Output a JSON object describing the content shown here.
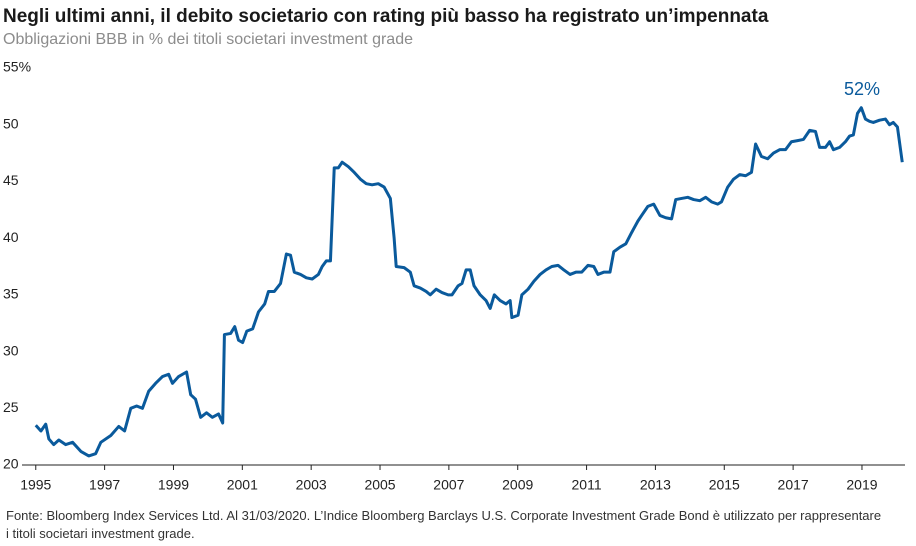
{
  "chart_data": {
    "type": "line",
    "title": "Negli ultimi anni, il debito societario con rating più basso ha registrato un’impennata",
    "subtitle": "Obbligazioni BBB in % dei titoli societari investment grade",
    "annotation": "52%",
    "source": "Fonte: Bloomberg Index Services Ltd. Al 31/03/2020. L’Indice Bloomberg Barclays U.S. Corporate Investment Grade Bond è utilizzato per rappresentare i titoli societari investment grade.",
    "color": "#0a5a9c",
    "xlim": [
      1994.6,
      2020.25
    ],
    "ylim": [
      20,
      55
    ],
    "xticks": [
      1995,
      1997,
      1999,
      2001,
      2003,
      2005,
      2007,
      2009,
      2011,
      2013,
      2015,
      2017,
      2019
    ],
    "yticks": [
      20,
      25,
      30,
      35,
      40,
      45,
      50,
      {
        "value": 55,
        "label": "55%"
      }
    ],
    "x": [
      1995.0,
      1995.15,
      1995.29,
      1995.38,
      1995.52,
      1995.67,
      1995.87,
      1996.07,
      1996.31,
      1996.54,
      1996.74,
      1996.89,
      1997.18,
      1997.41,
      1997.58,
      1997.76,
      1997.93,
      1998.1,
      1998.28,
      1998.48,
      1998.68,
      1998.86,
      1998.97,
      1999.15,
      1999.38,
      1999.5,
      1999.64,
      1999.79,
      1999.96,
      2000.13,
      2000.31,
      2000.43,
      2000.48,
      2000.66,
      2000.78,
      2000.89,
      2001.01,
      2001.13,
      2001.3,
      2001.47,
      2001.65,
      2001.76,
      2001.93,
      2002.11,
      2002.28,
      2002.4,
      2002.51,
      2002.69,
      2002.86,
      2003.03,
      2003.21,
      2003.32,
      2003.44,
      2003.56,
      2003.67,
      2003.79,
      2003.9,
      2004.08,
      2004.25,
      2004.43,
      2004.6,
      2004.77,
      2004.95,
      2005.12,
      2005.3,
      2005.41,
      2005.47,
      2005.7,
      2005.88,
      2005.99,
      2006.17,
      2006.34,
      2006.46,
      2006.63,
      2006.8,
      2006.98,
      2007.09,
      2007.27,
      2007.38,
      2007.5,
      2007.62,
      2007.73,
      2007.91,
      2008.08,
      2008.2,
      2008.32,
      2008.49,
      2008.66,
      2008.78,
      2008.83,
      2009.01,
      2009.12,
      2009.3,
      2009.47,
      2009.65,
      2009.82,
      2009.99,
      2010.17,
      2010.34,
      2010.52,
      2010.69,
      2010.86,
      2011.04,
      2011.21,
      2011.33,
      2011.5,
      2011.68,
      2011.79,
      2011.97,
      2012.14,
      2012.31,
      2012.49,
      2012.6,
      2012.78,
      2012.95,
      2013.13,
      2013.3,
      2013.47,
      2013.59,
      2013.76,
      2013.94,
      2014.11,
      2014.29,
      2014.46,
      2014.63,
      2014.81,
      2014.92,
      2015.1,
      2015.27,
      2015.45,
      2015.62,
      2015.79,
      2015.91,
      2016.08,
      2016.26,
      2016.43,
      2016.61,
      2016.78,
      2016.95,
      2017.13,
      2017.3,
      2017.48,
      2017.65,
      2017.77,
      2017.94,
      2018.06,
      2018.17,
      2018.35,
      2018.52,
      2018.64,
      2018.75,
      2018.87,
      2018.98,
      2019.1,
      2019.22,
      2019.33,
      2019.51,
      2019.68,
      2019.8,
      2019.91,
      2020.03,
      2020.17
    ],
    "values": [
      23.5,
      23.0,
      23.6,
      22.3,
      21.8,
      22.2,
      21.8,
      22.0,
      21.2,
      20.8,
      21.0,
      22.0,
      22.6,
      23.4,
      23.0,
      25.0,
      25.2,
      25.0,
      26.5,
      27.2,
      27.8,
      28.0,
      27.2,
      27.8,
      28.2,
      26.2,
      25.8,
      24.2,
      24.6,
      24.2,
      24.5,
      23.7,
      31.5,
      31.6,
      32.2,
      31.0,
      30.8,
      31.8,
      32.0,
      33.5,
      34.2,
      35.3,
      35.3,
      36.0,
      38.6,
      38.5,
      37.0,
      36.8,
      36.5,
      36.4,
      36.8,
      37.5,
      38.0,
      38.0,
      46.2,
      46.2,
      46.7,
      46.3,
      45.8,
      45.2,
      44.8,
      44.7,
      44.8,
      44.5,
      43.5,
      40.0,
      37.5,
      37.4,
      37.0,
      35.8,
      35.6,
      35.3,
      35.0,
      35.5,
      35.2,
      35.0,
      35.0,
      35.8,
      36.0,
      37.2,
      37.2,
      35.8,
      35.0,
      34.5,
      33.8,
      35.0,
      34.5,
      34.2,
      34.5,
      33.0,
      33.2,
      35.0,
      35.5,
      36.2,
      36.8,
      37.2,
      37.5,
      37.6,
      37.2,
      36.8,
      37.0,
      37.0,
      37.6,
      37.5,
      36.8,
      37.0,
      37.0,
      38.8,
      39.2,
      39.5,
      40.5,
      41.5,
      42.0,
      42.8,
      43.0,
      42.0,
      41.8,
      41.7,
      43.4,
      43.5,
      43.6,
      43.4,
      43.3,
      43.6,
      43.2,
      43.0,
      43.2,
      44.5,
      45.2,
      45.6,
      45.5,
      45.8,
      48.3,
      47.2,
      47.0,
      47.5,
      47.8,
      47.8,
      48.5,
      48.6,
      48.7,
      49.5,
      49.4,
      48.0,
      48.0,
      48.5,
      47.8,
      48.0,
      48.5,
      49.0,
      49.1,
      51.0,
      51.5,
      50.5,
      50.3,
      50.2,
      50.4,
      50.5,
      50.0,
      50.2,
      49.8,
      46.7
    ]
  }
}
